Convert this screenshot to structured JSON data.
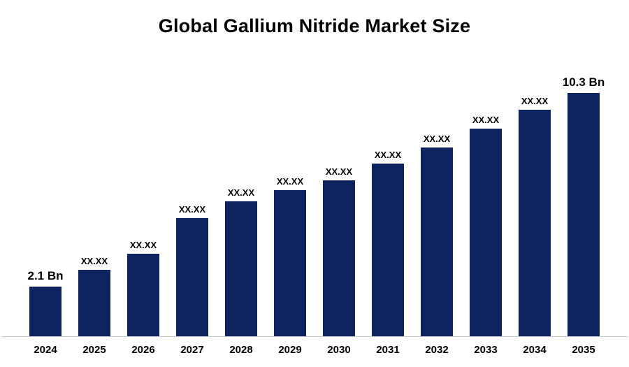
{
  "title": "Global Gallium Nitride Market Size",
  "chart_data": {
    "type": "bar",
    "title": "Global Gallium Nitride Market Size",
    "categories": [
      "2024",
      "2025",
      "2026",
      "2027",
      "2028",
      "2029",
      "2030",
      "2031",
      "2032",
      "2033",
      "2034",
      "2035"
    ],
    "values": [
      2.1,
      2.8,
      3.5,
      5.0,
      5.7,
      6.2,
      6.6,
      7.3,
      8.0,
      8.8,
      9.6,
      10.3
    ],
    "bar_labels": [
      "2.1 Bn",
      "XX.XX",
      "XX.XX",
      "XX.XX",
      "XX.XX",
      "XX.XX",
      "XX.XX",
      "XX.XX",
      "XX.XX",
      "XX.XX",
      "XX.XX",
      "10.3 Bn"
    ],
    "endpoint_label_first": "2.1 Bn",
    "endpoint_label_last": "10.3 Bn",
    "xlabel": "",
    "ylabel": "",
    "ylim": [
      0,
      10.3
    ],
    "grid": false,
    "legend": false,
    "bar_color": "#0d2461",
    "axis_line_color": "#c9c9c9",
    "units": "Bn"
  }
}
